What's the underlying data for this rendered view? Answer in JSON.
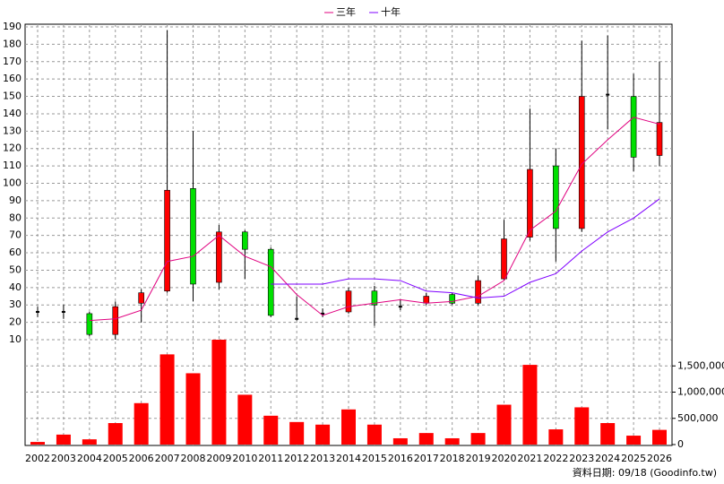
{
  "chart_data": {
    "type": "candlestick",
    "categories": [
      "2002",
      "2003",
      "2004",
      "2005",
      "2006",
      "2007",
      "2008",
      "2009",
      "2010",
      "2011",
      "2012",
      "2013",
      "2014",
      "2015",
      "2016",
      "2017",
      "2018",
      "2019",
      "2020",
      "2021",
      "2022",
      "2023",
      "2024",
      "2025",
      "2026"
    ],
    "open": [
      26,
      26,
      25,
      13,
      31,
      38,
      97,
      43,
      72,
      62,
      22,
      25,
      26,
      38,
      29,
      31,
      36,
      31,
      45,
      69,
      110,
      74,
      151,
      150,
      116
    ],
    "high": [
      29,
      30,
      26,
      32,
      39,
      188,
      130,
      76,
      73,
      63,
      35,
      28,
      40,
      41,
      33,
      37,
      37,
      47,
      79,
      143,
      120,
      182,
      185,
      163,
      170
    ],
    "low": [
      23,
      22,
      12,
      10,
      20,
      37,
      32,
      39,
      45,
      23,
      21,
      23,
      25,
      18,
      27,
      30,
      30,
      30,
      44,
      67,
      55,
      72,
      131,
      107,
      110
    ],
    "close": [
      26,
      26,
      13,
      29,
      37,
      96,
      42,
      72,
      62,
      24,
      22,
      25,
      38,
      30,
      29,
      35,
      31,
      44,
      68,
      108,
      74,
      150,
      151,
      115,
      135
    ],
    "up_color": "#ff0000",
    "down_color": "#00e000",
    "flat_color": "#000000",
    "ylim": [
      10,
      190
    ],
    "yticks": [
      10,
      20,
      30,
      40,
      50,
      60,
      70,
      80,
      90,
      100,
      110,
      120,
      130,
      140,
      150,
      160,
      170,
      180,
      190
    ],
    "grid": true,
    "lines": [
      {
        "name": "三年",
        "color": "#e0007f",
        "values": [
          null,
          null,
          21,
          22,
          27,
          55,
          58,
          70,
          58,
          52,
          36,
          24,
          29,
          31,
          33,
          31,
          32,
          35,
          44,
          73,
          84,
          111,
          125,
          138,
          134
        ]
      },
      {
        "name": "十年",
        "color": "#7f00ff",
        "values": [
          null,
          null,
          null,
          null,
          null,
          null,
          null,
          null,
          null,
          42,
          42,
          42,
          45,
          45,
          44,
          38,
          37,
          34,
          35,
          43,
          48,
          61,
          72,
          80,
          91
        ]
      }
    ],
    "volume": {
      "color": "#ff0000",
      "values": [
        50000,
        190000,
        100000,
        410000,
        790000,
        1720000,
        1360000,
        2000000,
        950000,
        550000,
        430000,
        380000,
        670000,
        380000,
        120000,
        220000,
        120000,
        220000,
        760000,
        1520000,
        290000,
        710000,
        410000,
        170000,
        280000
      ],
      "ylim": [
        0,
        2000000
      ],
      "yticks": [
        0,
        {
          "value": 500000,
          "label": "500,000"
        },
        {
          "value": 1000000,
          "label": "1,000,000"
        },
        {
          "value": 1500000,
          "label": "1,500,000"
        }
      ]
    },
    "source": "資料日期: 09/18 (Goodinfo.tw)"
  }
}
